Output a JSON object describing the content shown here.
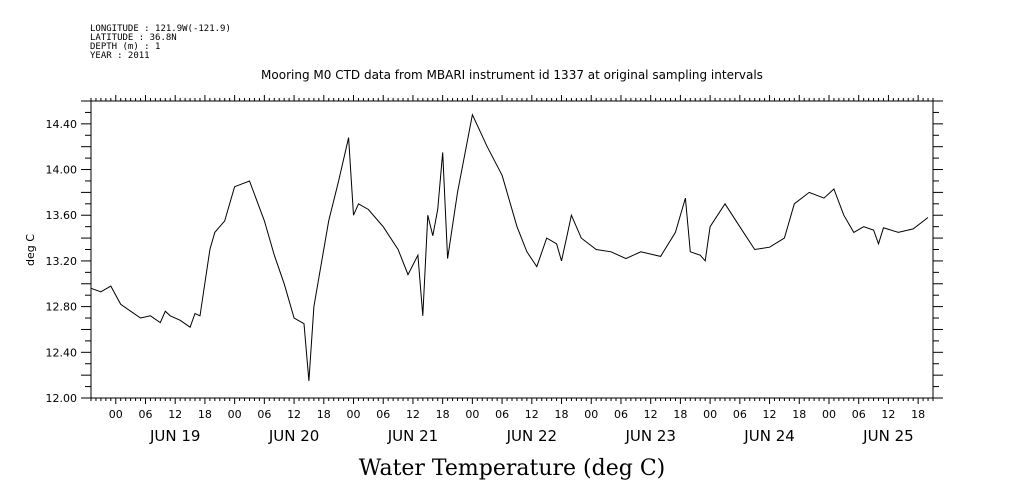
{
  "meta": {
    "longitude": "LONGITUDE : 121.9W(-121.9)",
    "latitude": "LATITUDE : 36.8N",
    "depth": "DEPTH (m) : 1",
    "year": "YEAR : 2011"
  },
  "chart_data": {
    "type": "line",
    "title": "Mooring M0 CTD data from MBARI instrument id 1337 at original sampling intervals",
    "xlabel": "Water Temperature (deg C)",
    "ylabel": "deg C",
    "ylim": [
      12.0,
      14.6
    ],
    "yticks": [
      "12.00",
      "12.40",
      "12.80",
      "13.20",
      "13.60",
      "14.00",
      "14.40"
    ],
    "xlim": [
      "2011-06-18 19:00",
      "2011-06-25 21:00"
    ],
    "hour_ticks": [
      "00",
      "06",
      "12",
      "18",
      "00",
      "06",
      "12",
      "18",
      "00",
      "06",
      "12",
      "18",
      "00",
      "06",
      "12",
      "18",
      "00",
      "06",
      "12",
      "18",
      "00",
      "06",
      "12",
      "18",
      "00",
      "06",
      "12",
      "18"
    ],
    "date_labels": [
      "JUN 19",
      "JUN 20",
      "JUN 21",
      "JUN 22",
      "JUN 23",
      "JUN 24",
      "JUN 25"
    ],
    "grid": false,
    "series": [
      {
        "x": [
          "2011-06-18 19:00",
          "2011-06-18 21:00",
          "2011-06-18 23:00",
          "2011-06-19 01:00",
          "2011-06-19 03:00",
          "2011-06-19 05:00",
          "2011-06-19 07:00",
          "2011-06-19 09:00",
          "2011-06-19 10:00",
          "2011-06-19 11:00",
          "2011-06-19 13:00",
          "2011-06-19 15:00",
          "2011-06-19 16:00",
          "2011-06-19 17:00",
          "2011-06-19 19:00",
          "2011-06-19 20:00",
          "2011-06-19 22:00",
          "2011-06-20 00:00",
          "2011-06-20 03:00",
          "2011-06-20 06:00",
          "2011-06-20 08:00",
          "2011-06-20 10:00",
          "2011-06-20 12:00",
          "2011-06-20 14:00",
          "2011-06-20 15:00",
          "2011-06-20 16:00",
          "2011-06-20 17:00",
          "2011-06-20 19:00",
          "2011-06-20 21:00",
          "2011-06-20 23:00",
          "2011-06-21 00:00",
          "2011-06-21 01:00",
          "2011-06-21 03:00",
          "2011-06-21 06:00",
          "2011-06-21 09:00",
          "2011-06-21 11:00",
          "2011-06-21 13:00",
          "2011-06-21 14:00",
          "2011-06-21 15:00",
          "2011-06-21 16:00",
          "2011-06-21 17:00",
          "2011-06-21 18:00",
          "2011-06-21 19:00",
          "2011-06-21 21:00",
          "2011-06-22 00:00",
          "2011-06-22 03:00",
          "2011-06-22 06:00",
          "2011-06-22 09:00",
          "2011-06-22 11:00",
          "2011-06-22 13:00",
          "2011-06-22 15:00",
          "2011-06-22 17:00",
          "2011-06-22 18:00",
          "2011-06-22 19:00",
          "2011-06-22 20:00",
          "2011-06-22 22:00",
          "2011-06-23 01:00",
          "2011-06-23 04:00",
          "2011-06-23 07:00",
          "2011-06-23 10:00",
          "2011-06-23 14:00",
          "2011-06-23 17:00",
          "2011-06-23 19:00",
          "2011-06-23 20:00",
          "2011-06-23 22:00",
          "2011-06-23 23:00",
          "2011-06-24 00:00",
          "2011-06-24 03:00",
          "2011-06-24 06:00",
          "2011-06-24 09:00",
          "2011-06-24 12:00",
          "2011-06-24 15:00",
          "2011-06-24 17:00",
          "2011-06-24 20:00",
          "2011-06-24 23:00",
          "2011-06-25 01:00",
          "2011-06-25 03:00",
          "2011-06-25 05:00",
          "2011-06-25 07:00",
          "2011-06-25 09:00",
          "2011-06-25 10:00",
          "2011-06-25 11:00",
          "2011-06-25 14:00",
          "2011-06-25 17:00",
          "2011-06-25 20:00"
        ],
        "values": [
          12.96,
          12.93,
          12.98,
          12.82,
          12.76,
          12.7,
          12.72,
          12.66,
          12.76,
          12.72,
          12.68,
          12.62,
          12.74,
          12.72,
          13.3,
          13.45,
          13.55,
          13.85,
          13.9,
          13.55,
          13.25,
          13.0,
          12.7,
          12.65,
          12.15,
          12.8,
          13.05,
          13.55,
          13.9,
          14.28,
          13.6,
          13.7,
          13.65,
          13.5,
          13.3,
          13.08,
          13.25,
          12.72,
          13.6,
          13.42,
          13.65,
          14.15,
          13.22,
          13.8,
          14.48,
          14.2,
          13.95,
          13.5,
          13.28,
          13.15,
          13.4,
          13.35,
          13.2,
          13.4,
          13.6,
          13.4,
          13.3,
          13.28,
          13.22,
          13.28,
          13.24,
          13.45,
          13.75,
          13.28,
          13.25,
          13.2,
          13.5,
          13.7,
          13.5,
          13.3,
          13.32,
          13.4,
          13.7,
          13.8,
          13.75,
          13.83,
          13.6,
          13.45,
          13.5,
          13.47,
          13.35,
          13.49,
          13.45,
          13.48,
          13.58
        ]
      }
    ]
  }
}
